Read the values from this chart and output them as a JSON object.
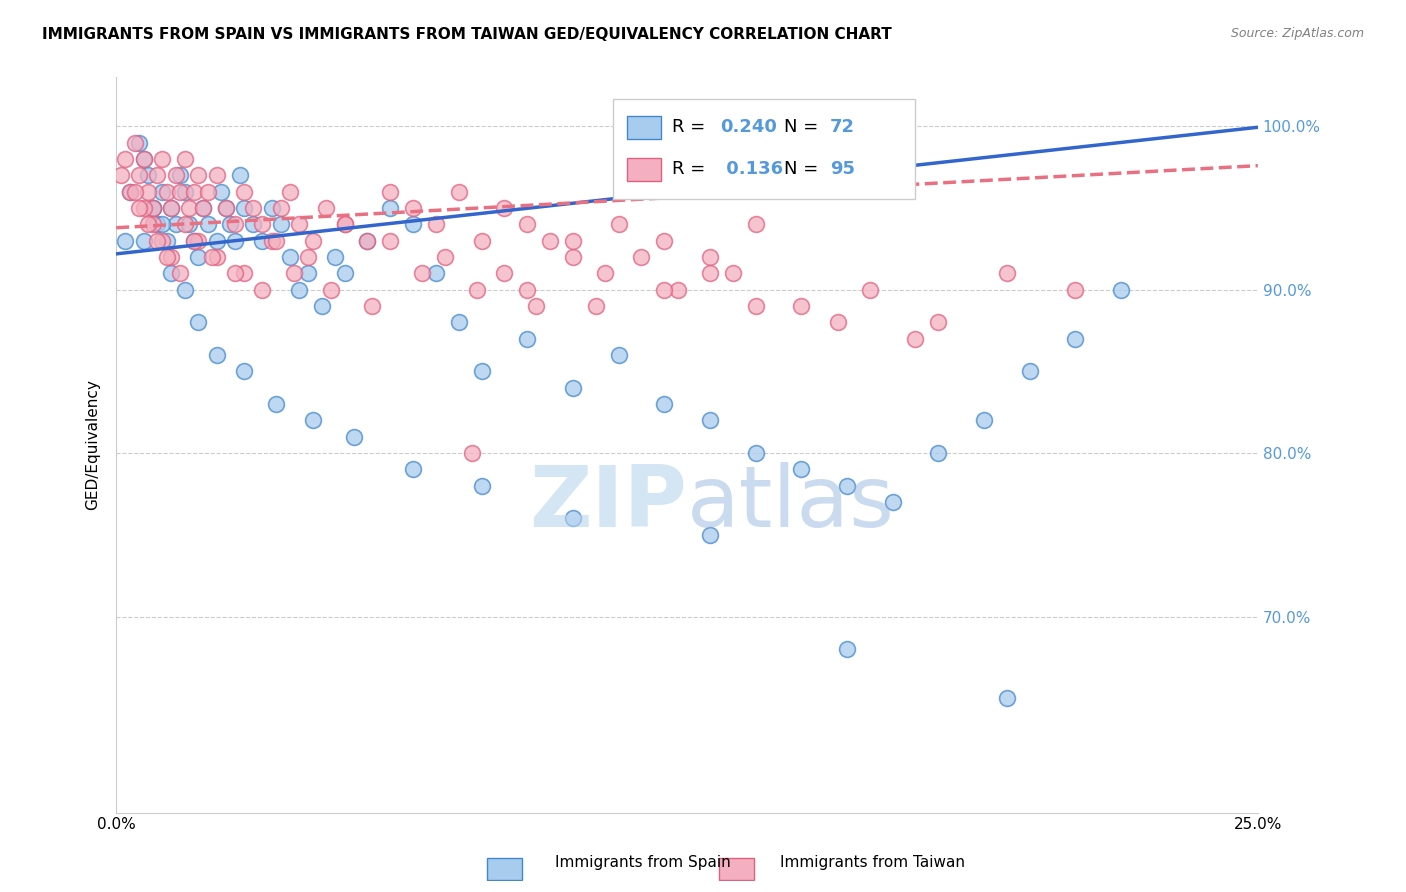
{
  "title": "IMMIGRANTS FROM SPAIN VS IMMIGRANTS FROM TAIWAN GED/EQUIVALENCY CORRELATION CHART",
  "source": "Source: ZipAtlas.com",
  "ylabel": "GED/Equivalency",
  "xlim": [
    0.0,
    0.25
  ],
  "ylim": [
    0.58,
    1.03
  ],
  "legend_spain_R": "0.240",
  "legend_spain_N": "72",
  "legend_taiwan_R": "0.136",
  "legend_taiwan_N": "95",
  "color_spain_fill": "#A8CCEE",
  "color_spain_edge": "#4488CC",
  "color_taiwan_fill": "#F4B0C0",
  "color_taiwan_edge": "#E06080",
  "color_spain_line": "#3366CC",
  "color_taiwan_line": "#E87080",
  "color_right_axis": "#5599DD",
  "spain_intercept": 0.922,
  "spain_slope": 0.31,
  "taiwan_intercept": 0.938,
  "taiwan_slope": 0.152,
  "spain_x": [
    0.002,
    0.003,
    0.005,
    0.006,
    0.007,
    0.008,
    0.009,
    0.01,
    0.011,
    0.012,
    0.013,
    0.014,
    0.015,
    0.016,
    0.017,
    0.018,
    0.019,
    0.02,
    0.022,
    0.023,
    0.024,
    0.025,
    0.026,
    0.027,
    0.028,
    0.03,
    0.032,
    0.034,
    0.036,
    0.038,
    0.04,
    0.042,
    0.045,
    0.048,
    0.05,
    0.055,
    0.06,
    0.065,
    0.07,
    0.075,
    0.08,
    0.09,
    0.1,
    0.11,
    0.12,
    0.13,
    0.14,
    0.15,
    0.16,
    0.17,
    0.18,
    0.19,
    0.2,
    0.21,
    0.22,
    0.006,
    0.008,
    0.01,
    0.012,
    0.015,
    0.018,
    0.022,
    0.028,
    0.035,
    0.043,
    0.052,
    0.065,
    0.08,
    0.1,
    0.13,
    0.16,
    0.195
  ],
  "spain_y": [
    0.93,
    0.96,
    0.99,
    0.98,
    0.97,
    0.95,
    0.94,
    0.96,
    0.93,
    0.95,
    0.94,
    0.97,
    0.96,
    0.94,
    0.93,
    0.92,
    0.95,
    0.94,
    0.93,
    0.96,
    0.95,
    0.94,
    0.93,
    0.97,
    0.95,
    0.94,
    0.93,
    0.95,
    0.94,
    0.92,
    0.9,
    0.91,
    0.89,
    0.92,
    0.91,
    0.93,
    0.95,
    0.94,
    0.91,
    0.88,
    0.85,
    0.87,
    0.84,
    0.86,
    0.83,
    0.82,
    0.8,
    0.79,
    0.78,
    0.77,
    0.8,
    0.82,
    0.85,
    0.87,
    0.9,
    0.93,
    0.95,
    0.94,
    0.91,
    0.9,
    0.88,
    0.86,
    0.85,
    0.83,
    0.82,
    0.81,
    0.79,
    0.78,
    0.76,
    0.75,
    0.68,
    0.65
  ],
  "taiwan_x": [
    0.001,
    0.002,
    0.003,
    0.004,
    0.005,
    0.006,
    0.007,
    0.008,
    0.009,
    0.01,
    0.011,
    0.012,
    0.013,
    0.014,
    0.015,
    0.016,
    0.017,
    0.018,
    0.019,
    0.02,
    0.022,
    0.024,
    0.026,
    0.028,
    0.03,
    0.032,
    0.034,
    0.036,
    0.038,
    0.04,
    0.043,
    0.046,
    0.05,
    0.055,
    0.06,
    0.065,
    0.07,
    0.075,
    0.08,
    0.085,
    0.09,
    0.095,
    0.1,
    0.11,
    0.12,
    0.13,
    0.14,
    0.004,
    0.006,
    0.008,
    0.01,
    0.012,
    0.015,
    0.018,
    0.022,
    0.028,
    0.035,
    0.042,
    0.05,
    0.06,
    0.072,
    0.085,
    0.1,
    0.115,
    0.13,
    0.005,
    0.007,
    0.009,
    0.011,
    0.014,
    0.017,
    0.021,
    0.026,
    0.032,
    0.039,
    0.047,
    0.056,
    0.067,
    0.079,
    0.092,
    0.107,
    0.123,
    0.14,
    0.158,
    0.175,
    0.195,
    0.21,
    0.18,
    0.165,
    0.15,
    0.135,
    0.12,
    0.105,
    0.09,
    0.078
  ],
  "taiwan_y": [
    0.97,
    0.98,
    0.96,
    0.99,
    0.97,
    0.98,
    0.96,
    0.95,
    0.97,
    0.98,
    0.96,
    0.95,
    0.97,
    0.96,
    0.98,
    0.95,
    0.96,
    0.97,
    0.95,
    0.96,
    0.97,
    0.95,
    0.94,
    0.96,
    0.95,
    0.94,
    0.93,
    0.95,
    0.96,
    0.94,
    0.93,
    0.95,
    0.94,
    0.93,
    0.96,
    0.95,
    0.94,
    0.96,
    0.93,
    0.95,
    0.94,
    0.93,
    0.92,
    0.94,
    0.93,
    0.92,
    0.94,
    0.96,
    0.95,
    0.94,
    0.93,
    0.92,
    0.94,
    0.93,
    0.92,
    0.91,
    0.93,
    0.92,
    0.94,
    0.93,
    0.92,
    0.91,
    0.93,
    0.92,
    0.91,
    0.95,
    0.94,
    0.93,
    0.92,
    0.91,
    0.93,
    0.92,
    0.91,
    0.9,
    0.91,
    0.9,
    0.89,
    0.91,
    0.9,
    0.89,
    0.91,
    0.9,
    0.89,
    0.88,
    0.87,
    0.91,
    0.9,
    0.88,
    0.9,
    0.89,
    0.91,
    0.9,
    0.89,
    0.9,
    0.8
  ]
}
